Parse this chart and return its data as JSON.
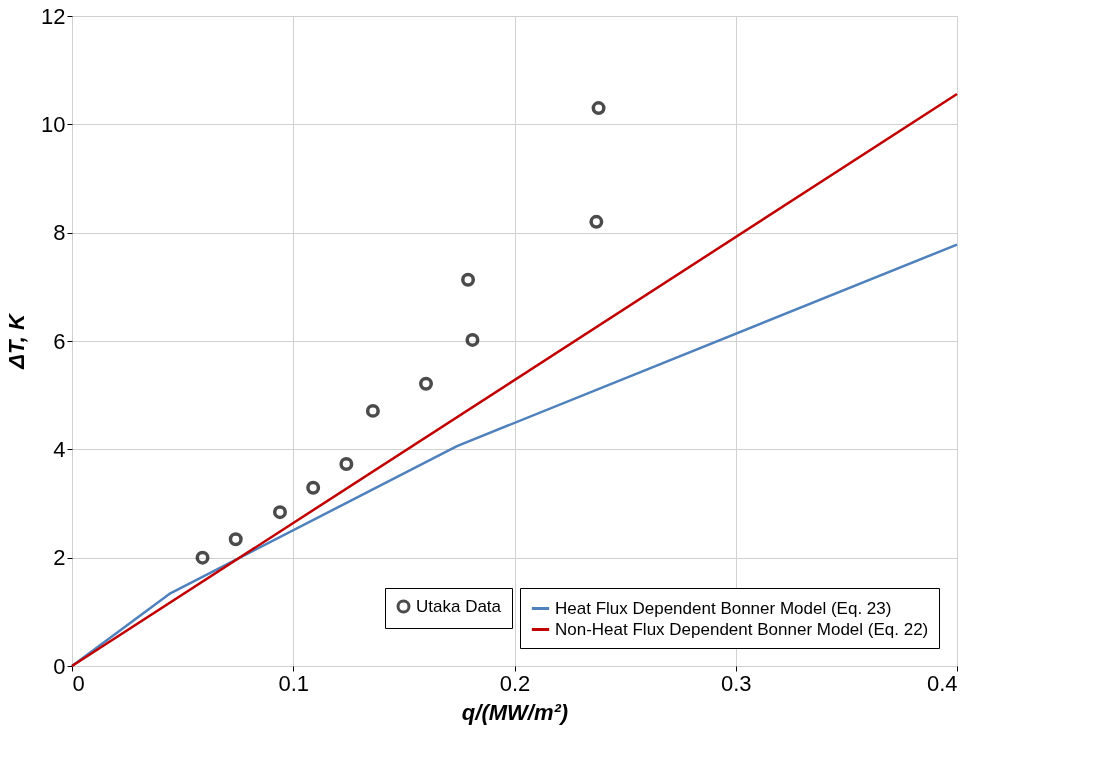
{
  "chart_data": {
    "type": "line",
    "xlabel": "q/(MW/m²)",
    "ylabel": "ΔT, K",
    "xlim": [
      0,
      0.4
    ],
    "ylim": [
      0,
      12
    ],
    "xticks": [
      0,
      0.1,
      0.2,
      0.3,
      0.4
    ],
    "yticks": [
      0,
      2,
      4,
      6,
      8,
      10,
      12
    ],
    "grid": true,
    "legend": "bottom right",
    "series": [
      {
        "name": "Utaka Data",
        "type": "scatter",
        "marker": "circle",
        "color": "#000000",
        "x": [
          0.059,
          0.074,
          0.094,
          0.109,
          0.124,
          0.136,
          0.16,
          0.181,
          0.179,
          0.237,
          0.238
        ],
        "values": [
          2.0,
          2.34,
          2.84,
          3.29,
          3.73,
          4.71,
          5.21,
          6.02,
          7.13,
          8.2,
          10.3
        ]
      },
      {
        "name": "Heat Flux Dependent Bonner Model (Eq. 23)",
        "color": "#4f81bd",
        "x": [
          0,
          0.044,
          0.174,
          0.4
        ],
        "values": [
          0,
          1.33,
          4.06,
          7.78
        ]
      },
      {
        "name": "Non-Heat Flux Dependent Bonner Model (Eq. 22)",
        "color": "#c00000",
        "x": [
          0,
          0.4
        ],
        "values": [
          0,
          10.56
        ]
      }
    ]
  }
}
